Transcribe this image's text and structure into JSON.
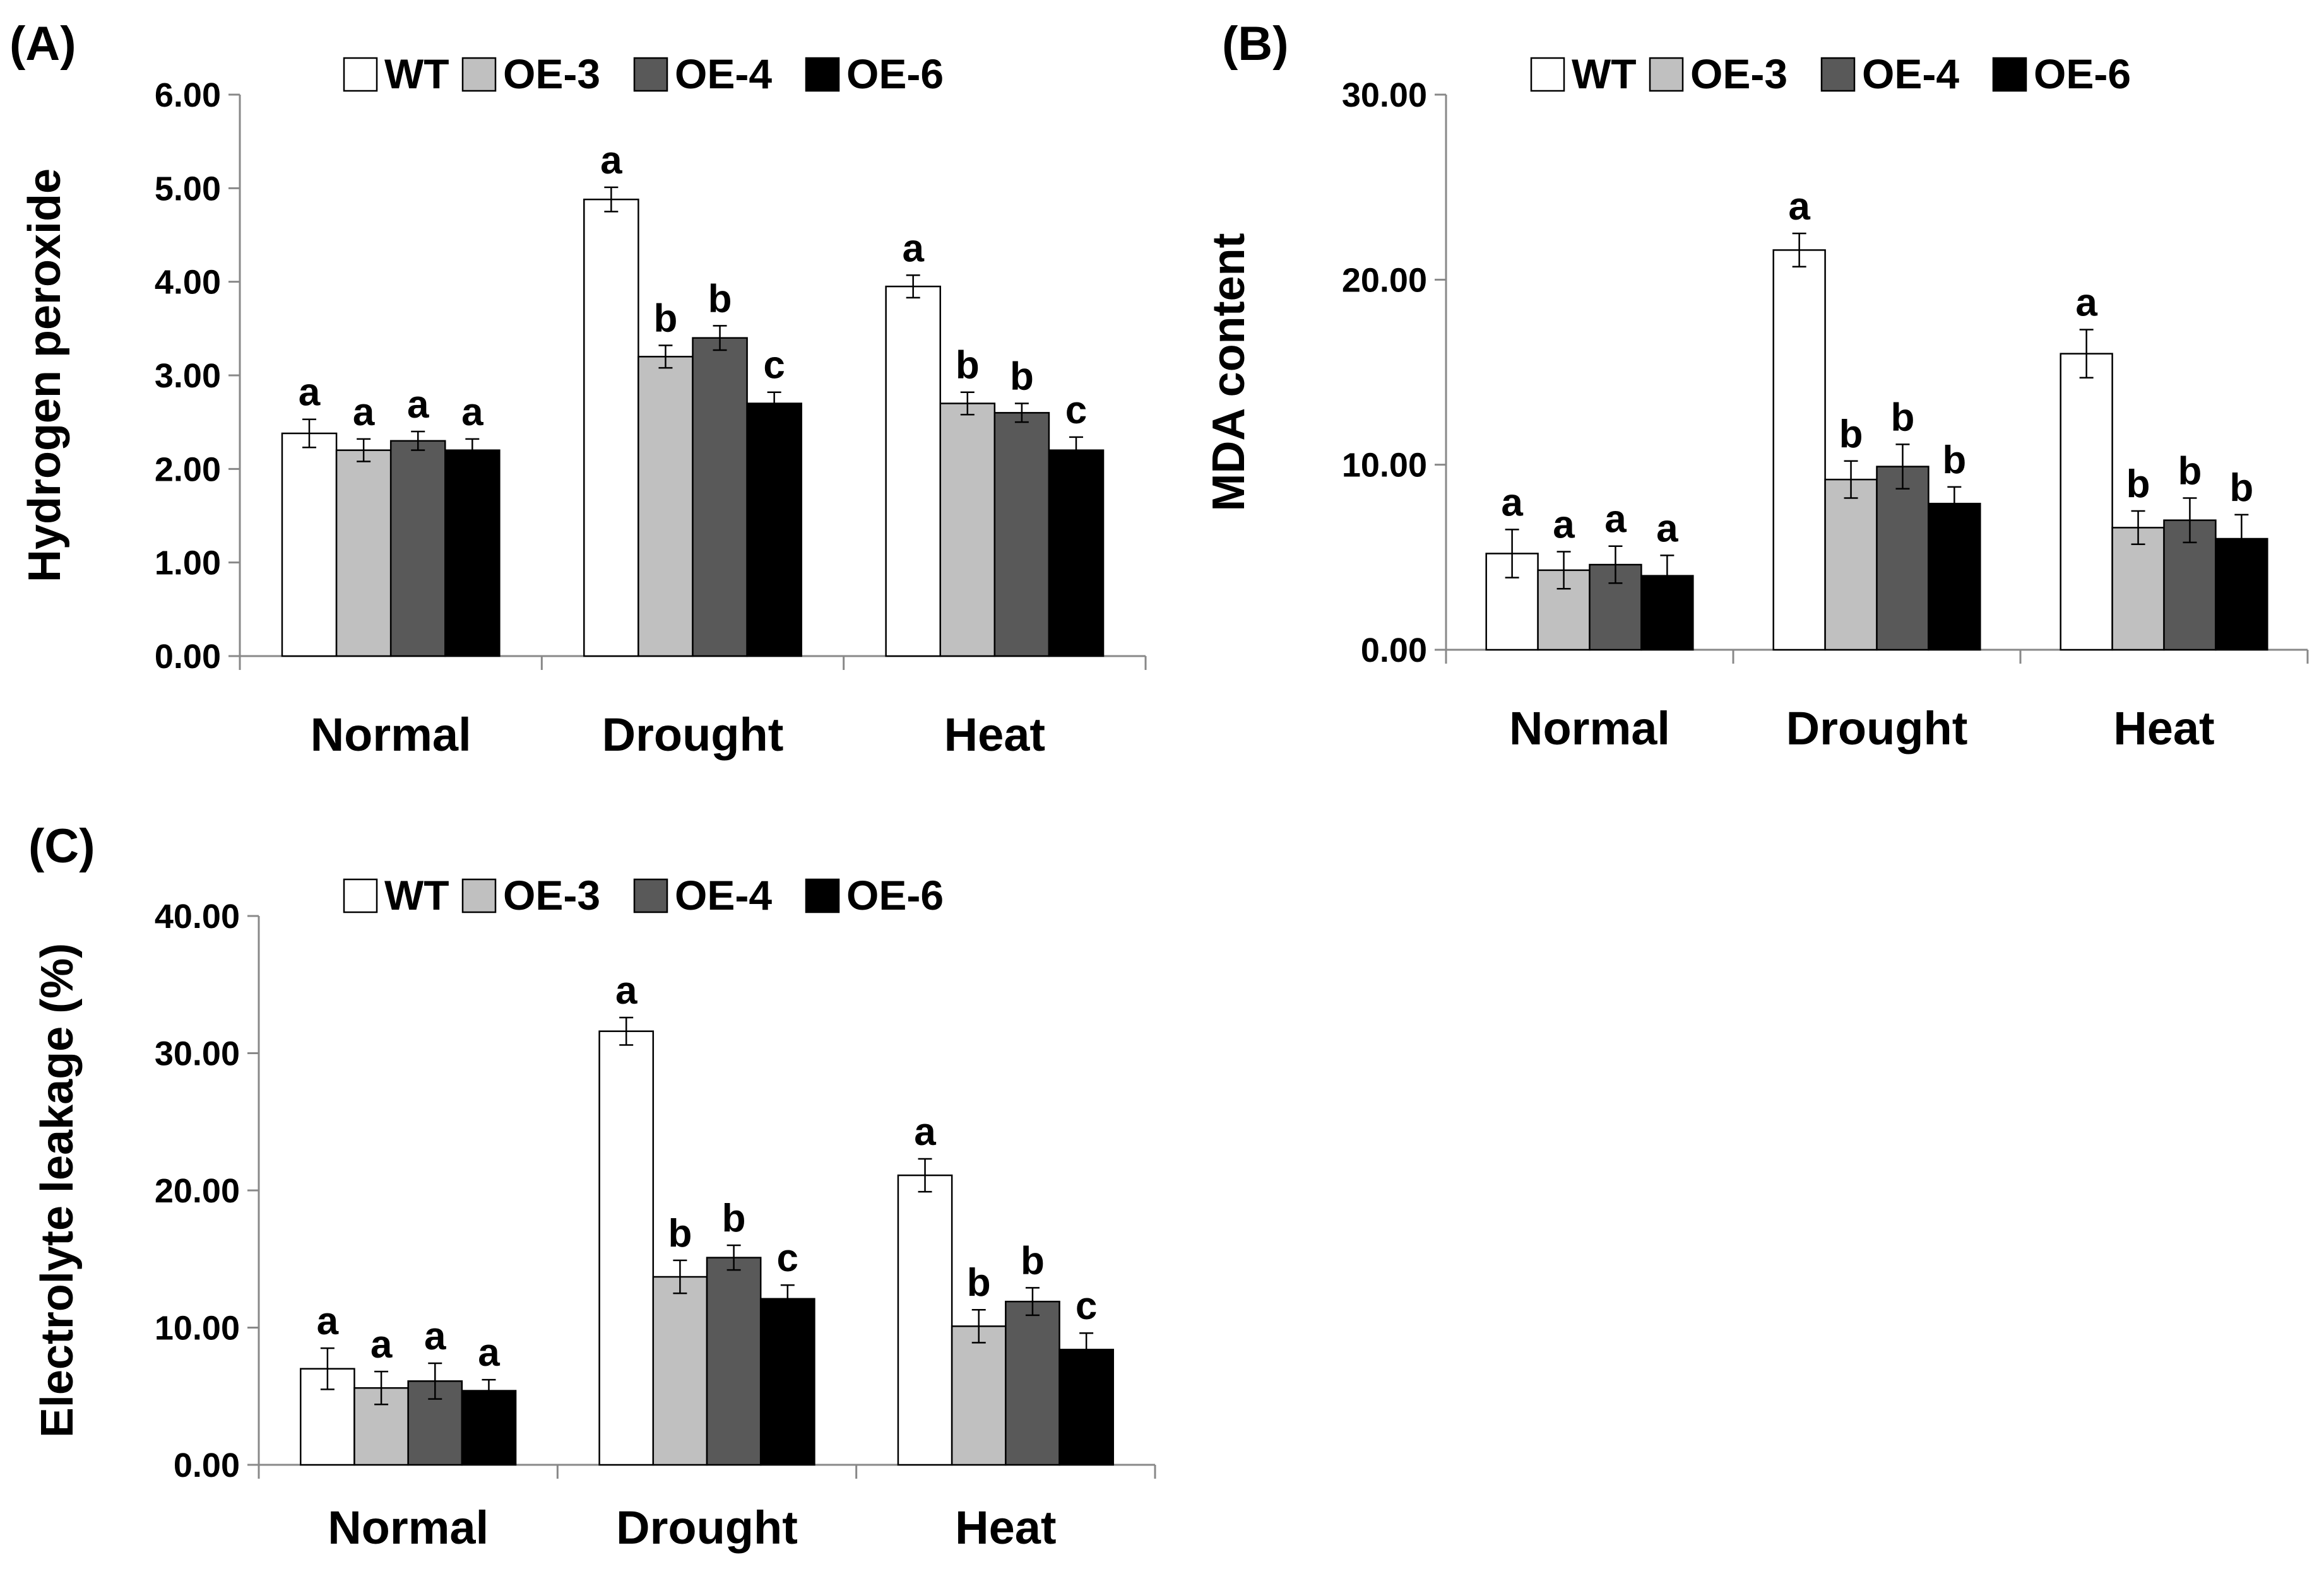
{
  "series_colors": {
    "WT": "#ffffff",
    "OE-3": "#c0c0c0",
    "OE-4": "#595959",
    "OE-6": "#000000"
  },
  "chart_data": [
    {
      "panel": "(A)",
      "type": "bar",
      "ylabel": "Hydrogen peroxide",
      "categories": [
        "Normal",
        "Drought",
        "Heat"
      ],
      "yticks": [
        "0.00",
        "1.00",
        "2.00",
        "3.00",
        "4.00",
        "5.00",
        "6.00"
      ],
      "ylim": [
        0,
        6
      ],
      "legend_position": "top-center",
      "series": [
        {
          "name": "WT",
          "values": [
            2.38,
            4.88,
            3.95
          ],
          "errors": [
            0.15,
            0.13,
            0.12
          ],
          "letters": [
            "a",
            "a",
            "a"
          ]
        },
        {
          "name": "OE-3",
          "values": [
            2.2,
            3.2,
            2.7
          ],
          "errors": [
            0.12,
            0.12,
            0.12
          ],
          "letters": [
            "a",
            "b",
            "b"
          ]
        },
        {
          "name": "OE-4",
          "values": [
            2.3,
            3.4,
            2.6
          ],
          "errors": [
            0.1,
            0.13,
            0.1
          ],
          "letters": [
            "a",
            "b",
            "b"
          ]
        },
        {
          "name": "OE-6",
          "values": [
            2.2,
            2.7,
            2.2
          ],
          "errors": [
            0.12,
            0.12,
            0.14
          ],
          "letters": [
            "a",
            "c",
            "c"
          ]
        }
      ]
    },
    {
      "panel": "(B)",
      "type": "bar",
      "ylabel": "MDA content",
      "categories": [
        "Normal",
        "Drought",
        "Heat"
      ],
      "yticks": [
        "0.00",
        "10.00",
        "20.00",
        "30.00"
      ],
      "ylim": [
        0,
        30
      ],
      "legend_position": "top-center",
      "series": [
        {
          "name": "WT",
          "values": [
            5.2,
            21.6,
            16.0
          ],
          "errors": [
            1.3,
            0.9,
            1.3
          ],
          "letters": [
            "a",
            "a",
            "a"
          ]
        },
        {
          "name": "OE-3",
          "values": [
            4.3,
            9.2,
            6.6
          ],
          "errors": [
            1.0,
            1.0,
            0.9
          ],
          "letters": [
            "a",
            "b",
            "b"
          ]
        },
        {
          "name": "OE-4",
          "values": [
            4.6,
            9.9,
            7.0
          ],
          "errors": [
            1.0,
            1.2,
            1.2
          ],
          "letters": [
            "a",
            "b",
            "b"
          ]
        },
        {
          "name": "OE-6",
          "values": [
            4.0,
            7.9,
            6.0
          ],
          "errors": [
            1.1,
            0.9,
            1.3
          ],
          "letters": [
            "a",
            "b",
            "b"
          ]
        }
      ]
    },
    {
      "panel": "(C)",
      "type": "bar",
      "ylabel": "Electrolyte leakage (%)",
      "categories": [
        "Normal",
        "Drought",
        "Heat"
      ],
      "yticks": [
        "0.00",
        "10.00",
        "20.00",
        "30.00",
        "40.00"
      ],
      "ylim": [
        0,
        40
      ],
      "legend_position": "top-center",
      "series": [
        {
          "name": "WT",
          "values": [
            7.0,
            31.6,
            21.1
          ],
          "errors": [
            1.5,
            1.0,
            1.2
          ],
          "letters": [
            "a",
            "a",
            "a"
          ]
        },
        {
          "name": "OE-3",
          "values": [
            5.6,
            13.7,
            10.1
          ],
          "errors": [
            1.2,
            1.2,
            1.2
          ],
          "letters": [
            "a",
            "b",
            "b"
          ]
        },
        {
          "name": "OE-4",
          "values": [
            6.1,
            15.1,
            11.9
          ],
          "errors": [
            1.3,
            0.9,
            1.0
          ],
          "letters": [
            "a",
            "b",
            "b"
          ]
        },
        {
          "name": "OE-6",
          "values": [
            5.4,
            12.1,
            8.4
          ],
          "errors": [
            0.8,
            1.0,
            1.2
          ],
          "letters": [
            "a",
            "c",
            "c"
          ]
        }
      ]
    }
  ]
}
